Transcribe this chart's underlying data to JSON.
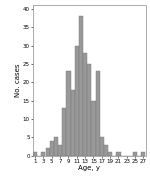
{
  "ages": [
    1,
    2,
    3,
    4,
    5,
    6,
    7,
    8,
    9,
    10,
    11,
    12,
    13,
    14,
    15,
    16,
    17,
    18,
    19,
    20,
    21,
    22,
    23,
    24,
    25,
    26,
    27
  ],
  "counts": [
    1,
    0,
    1,
    2,
    4,
    5,
    3,
    13,
    23,
    18,
    30,
    38,
    28,
    25,
    15,
    23,
    5,
    3,
    1,
    0,
    1,
    0,
    0,
    0,
    1,
    0,
    1
  ],
  "bar_color": "#999999",
  "bar_edge_color": "#777777",
  "xlabel": "Age, y",
  "ylabel": "No. cases",
  "xlim": [
    0.5,
    27.5
  ],
  "ylim": [
    0,
    41
  ],
  "yticks": [
    0,
    5,
    10,
    15,
    20,
    25,
    30,
    35,
    40
  ],
  "xticks": [
    1,
    3,
    5,
    7,
    9,
    11,
    13,
    15,
    17,
    19,
    21,
    23,
    25,
    27
  ],
  "xlabel_fontsize": 5.0,
  "ylabel_fontsize": 5.0,
  "tick_fontsize": 4.0,
  "background_color": "#ffffff",
  "figsize": [
    1.5,
    1.83
  ],
  "dpi": 100
}
